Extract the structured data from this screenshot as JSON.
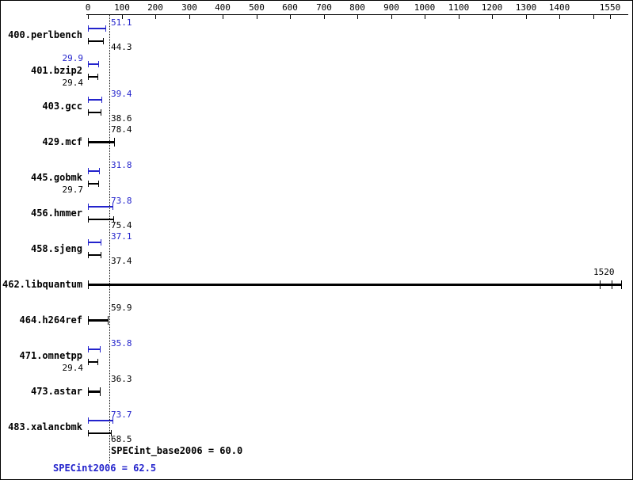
{
  "chart_data": {
    "type": "bar",
    "orientation": "horizontal",
    "title": "",
    "x_axis": {
      "min": 0,
      "max": 1550,
      "ticks": [
        {
          "value": 0,
          "label": "0"
        },
        {
          "value": 100,
          "label": "100"
        },
        {
          "value": 200,
          "label": "200"
        },
        {
          "value": 300,
          "label": "300"
        },
        {
          "value": 400,
          "label": "400"
        },
        {
          "value": 500,
          "label": "500"
        },
        {
          "value": 600,
          "label": "600"
        },
        {
          "value": 700,
          "label": "700"
        },
        {
          "value": 800,
          "label": "800"
        },
        {
          "value": 900,
          "label": "900"
        },
        {
          "value": 1000,
          "label": "1000"
        },
        {
          "value": 1100,
          "label": "1100"
        },
        {
          "value": 1200,
          "label": "1200"
        },
        {
          "value": 1300,
          "label": "1300"
        },
        {
          "value": 1400,
          "label": "1400"
        },
        {
          "value": 1500,
          "label": ""
        },
        {
          "value": 1550,
          "label": "1550"
        }
      ]
    },
    "specint_line": {
      "value": 62.5
    },
    "colors": {
      "peak": "#2323cc",
      "base": "#000000"
    },
    "benchmarks": [
      {
        "name": "400.perlbench",
        "display": "pair",
        "peak": 51.1,
        "base": 44.3,
        "peak_label": {
          "text": "51.1",
          "side": "right"
        },
        "base_label": {
          "text": "44.3",
          "side": "right"
        }
      },
      {
        "name": "401.bzip2",
        "display": "pair",
        "peak": 29.9,
        "base": 29.4,
        "peak_label": {
          "text": "29.9",
          "side": "left"
        },
        "base_label": {
          "text": "29.4",
          "side": "left"
        }
      },
      {
        "name": "403.gcc",
        "display": "pair",
        "peak": 39.4,
        "base": 38.6,
        "peak_label": {
          "text": "39.4",
          "side": "right"
        },
        "base_label": {
          "text": "38.6",
          "side": "right"
        }
      },
      {
        "name": "429.mcf",
        "display": "single",
        "value": 78.4,
        "label": {
          "text": "78.4",
          "side": "right"
        }
      },
      {
        "name": "445.gobmk",
        "display": "pair",
        "peak": 31.8,
        "base": 29.7,
        "peak_label": {
          "text": "31.8",
          "side": "right"
        },
        "base_label": {
          "text": "29.7",
          "side": "left"
        }
      },
      {
        "name": "456.hmmer",
        "display": "pair",
        "peak": 73.8,
        "base": 75.4,
        "peak_label": {
          "text": "73.8",
          "side": "right"
        },
        "base_label": {
          "text": "75.4",
          "side": "right"
        }
      },
      {
        "name": "458.sjeng",
        "display": "pair",
        "peak": 37.1,
        "base": 37.4,
        "peak_label": {
          "text": "37.1",
          "side": "right"
        },
        "base_label": {
          "text": "37.4",
          "side": "right"
        }
      },
      {
        "name": "462.libquantum",
        "display": "single",
        "value": 1520,
        "label": {
          "text": "1520",
          "side": "end"
        }
      },
      {
        "name": "464.h264ref",
        "display": "single",
        "value": 59.9,
        "label": {
          "text": "59.9",
          "side": "right"
        }
      },
      {
        "name": "471.omnetpp",
        "display": "pair",
        "peak": 35.8,
        "base": 29.4,
        "peak_label": {
          "text": "35.8",
          "side": "right"
        },
        "base_label": {
          "text": "29.4",
          "side": "left"
        }
      },
      {
        "name": "473.astar",
        "display": "single",
        "value": 36.3,
        "label": {
          "text": "36.3",
          "side": "right"
        }
      },
      {
        "name": "483.xalancbmk",
        "display": "pair",
        "peak": 73.7,
        "base": 68.5,
        "peak_label": {
          "text": "73.7",
          "side": "right"
        },
        "base_label": {
          "text": "68.5",
          "side": "right"
        }
      }
    ],
    "footer": {
      "base_text": "SPECint_base2006 = 60.0",
      "peak_text": "SPECint2006 = 62.5"
    }
  }
}
